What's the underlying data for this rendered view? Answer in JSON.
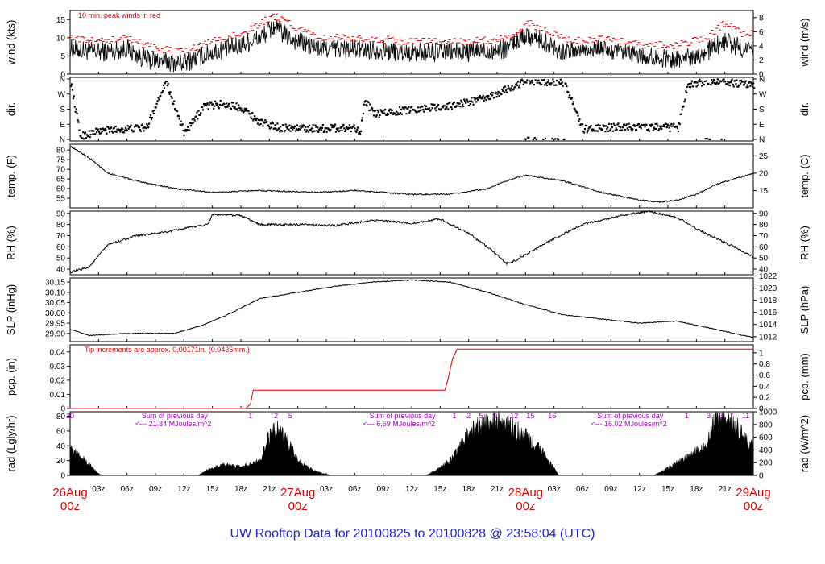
{
  "chart_data": {
    "title": "UW Rooftop Data for 20100825  to  20100828 @ 23:58:04  (UTC)",
    "type": "line",
    "x": {
      "day_labels": [
        {
          "t": 0,
          "day": "26Aug",
          "hour": "00z"
        },
        {
          "t": 24,
          "day": "27Aug",
          "hour": "00z"
        },
        {
          "t": 48,
          "day": "28Aug",
          "hour": "00z"
        },
        {
          "t": 72,
          "day": "29Aug",
          "hour": "00z"
        }
      ],
      "hour_ticks": [
        "03z",
        "06z",
        "09z",
        "12z",
        "15z",
        "18z",
        "21z"
      ],
      "range_hours": [
        0,
        72
      ]
    },
    "colors": {
      "main": "#000000",
      "accent": "#dd0000",
      "title": "#2222cc",
      "annotation": "#aa00cc"
    },
    "panels": [
      {
        "id": "wind",
        "ylabel_left": "wind (kts)",
        "ylabel_right": "wind (m/s)",
        "ylim": [
          0,
          17.5
        ],
        "yticks_left": [
          "0",
          "5",
          "10",
          "15"
        ],
        "yticks_right": [
          "0",
          "2",
          "4",
          "6",
          "8"
        ],
        "note": "10 min. peak winds in red",
        "series": [
          {
            "t": 0,
            "v": 7
          },
          {
            "t": 3,
            "v": 6
          },
          {
            "t": 6,
            "v": 7
          },
          {
            "t": 8,
            "v": 4
          },
          {
            "t": 12,
            "v": 3
          },
          {
            "t": 15,
            "v": 6
          },
          {
            "t": 18,
            "v": 8
          },
          {
            "t": 20,
            "v": 10
          },
          {
            "t": 21.5,
            "v": 13
          },
          {
            "t": 23,
            "v": 10
          },
          {
            "t": 26,
            "v": 7
          },
          {
            "t": 30,
            "v": 7
          },
          {
            "t": 36,
            "v": 6
          },
          {
            "t": 42,
            "v": 6
          },
          {
            "t": 46,
            "v": 7
          },
          {
            "t": 48,
            "v": 11
          },
          {
            "t": 50,
            "v": 9
          },
          {
            "t": 52,
            "v": 6
          },
          {
            "t": 55,
            "v": 7
          },
          {
            "t": 60,
            "v": 5
          },
          {
            "t": 64,
            "v": 4
          },
          {
            "t": 67,
            "v": 6
          },
          {
            "t": 69,
            "v": 9
          },
          {
            "t": 71,
            "v": 7
          },
          {
            "t": 72,
            "v": 6
          }
        ],
        "peaks": [
          {
            "t": 0,
            "v": 10
          },
          {
            "t": 3,
            "v": 9
          },
          {
            "t": 6,
            "v": 10
          },
          {
            "t": 9,
            "v": 7
          },
          {
            "t": 12,
            "v": 6
          },
          {
            "t": 15,
            "v": 9
          },
          {
            "t": 18,
            "v": 11
          },
          {
            "t": 21.5,
            "v": 16
          },
          {
            "t": 23,
            "v": 14
          },
          {
            "t": 26,
            "v": 10
          },
          {
            "t": 30,
            "v": 10
          },
          {
            "t": 36,
            "v": 9
          },
          {
            "t": 42,
            "v": 9
          },
          {
            "t": 47,
            "v": 10
          },
          {
            "t": 48.3,
            "v": 14
          },
          {
            "t": 50,
            "v": 12
          },
          {
            "t": 53,
            "v": 9
          },
          {
            "t": 56,
            "v": 10
          },
          {
            "t": 60,
            "v": 8
          },
          {
            "t": 64,
            "v": 8
          },
          {
            "t": 67,
            "v": 10
          },
          {
            "t": 69,
            "v": 14
          },
          {
            "t": 71,
            "v": 11
          }
        ]
      },
      {
        "id": "dir",
        "ylabel_left": "dir.",
        "ylabel_right": "dir.",
        "ylim": [
          0,
          360
        ],
        "yticks_left": [
          "N",
          "E",
          "S",
          "W",
          "N"
        ],
        "yticks_right": [
          "N",
          "E",
          "S",
          "W",
          "N"
        ],
        "series": [
          {
            "t": 0,
            "v": 340
          },
          {
            "t": 1,
            "v": 20
          },
          {
            "t": 3,
            "v": 50
          },
          {
            "t": 5,
            "v": 60
          },
          {
            "t": 8,
            "v": 70
          },
          {
            "t": 10,
            "v": 350
          },
          {
            "t": 12,
            "v": 30
          },
          {
            "t": 14,
            "v": 200
          },
          {
            "t": 16,
            "v": 210
          },
          {
            "t": 18,
            "v": 190
          },
          {
            "t": 20,
            "v": 100
          },
          {
            "t": 22,
            "v": 70
          },
          {
            "t": 26,
            "v": 65
          },
          {
            "t": 30,
            "v": 70
          },
          {
            "t": 30.5,
            "v": 50
          },
          {
            "t": 31,
            "v": 230
          },
          {
            "t": 32,
            "v": 150
          },
          {
            "t": 36,
            "v": 180
          },
          {
            "t": 40,
            "v": 200
          },
          {
            "t": 44,
            "v": 250
          },
          {
            "t": 46,
            "v": 300
          },
          {
            "t": 48,
            "v": 350
          },
          {
            "t": 52,
            "v": 340
          },
          {
            "t": 54,
            "v": 60
          },
          {
            "t": 58,
            "v": 75
          },
          {
            "t": 64,
            "v": 70
          },
          {
            "t": 65,
            "v": 330
          },
          {
            "t": 68,
            "v": 350
          },
          {
            "t": 72,
            "v": 320
          }
        ]
      },
      {
        "id": "temp",
        "ylabel_left": "temp. (F)",
        "ylabel_right": "temp. (C)",
        "ylim": [
          50,
          83
        ],
        "yticks_left": [
          "55",
          "60",
          "65",
          "70",
          "75",
          "80"
        ],
        "yticks_right": [
          "15",
          "20",
          "25"
        ],
        "series": [
          {
            "t": 0,
            "v": 82
          },
          {
            "t": 2,
            "v": 76
          },
          {
            "t": 4,
            "v": 68
          },
          {
            "t": 7,
            "v": 64
          },
          {
            "t": 11,
            "v": 60
          },
          {
            "t": 15,
            "v": 58
          },
          {
            "t": 20,
            "v": 59
          },
          {
            "t": 26,
            "v": 58
          },
          {
            "t": 30,
            "v": 59
          },
          {
            "t": 36,
            "v": 57
          },
          {
            "t": 40,
            "v": 57
          },
          {
            "t": 44,
            "v": 60
          },
          {
            "t": 46,
            "v": 64
          },
          {
            "t": 48,
            "v": 67
          },
          {
            "t": 52,
            "v": 64
          },
          {
            "t": 56,
            "v": 58
          },
          {
            "t": 60,
            "v": 54
          },
          {
            "t": 62,
            "v": 53
          },
          {
            "t": 64,
            "v": 54
          },
          {
            "t": 66,
            "v": 57
          },
          {
            "t": 68,
            "v": 62
          },
          {
            "t": 72,
            "v": 68
          }
        ]
      },
      {
        "id": "rh",
        "ylabel_left": "RH (%)",
        "ylabel_right": "RH (%)",
        "ylim": [
          35,
          92
        ],
        "yticks_left": [
          "40",
          "50",
          "60",
          "70",
          "80",
          "90"
        ],
        "yticks_right": [
          "40",
          "50",
          "60",
          "70",
          "80",
          "90"
        ],
        "series": [
          {
            "t": 0,
            "v": 37
          },
          {
            "t": 2,
            "v": 42
          },
          {
            "t": 4,
            "v": 62
          },
          {
            "t": 7,
            "v": 70
          },
          {
            "t": 10,
            "v": 73
          },
          {
            "t": 13,
            "v": 78
          },
          {
            "t": 14.5,
            "v": 80
          },
          {
            "t": 15,
            "v": 89
          },
          {
            "t": 18,
            "v": 88
          },
          {
            "t": 20,
            "v": 80
          },
          {
            "t": 24,
            "v": 80
          },
          {
            "t": 28,
            "v": 79
          },
          {
            "t": 32,
            "v": 84
          },
          {
            "t": 36,
            "v": 81
          },
          {
            "t": 39,
            "v": 85
          },
          {
            "t": 42,
            "v": 72
          },
          {
            "t": 44,
            "v": 60
          },
          {
            "t": 46,
            "v": 45
          },
          {
            "t": 47,
            "v": 48
          },
          {
            "t": 50,
            "v": 63
          },
          {
            "t": 54,
            "v": 80
          },
          {
            "t": 58,
            "v": 88
          },
          {
            "t": 61,
            "v": 92
          },
          {
            "t": 64,
            "v": 86
          },
          {
            "t": 67,
            "v": 72
          },
          {
            "t": 70,
            "v": 60
          },
          {
            "t": 72,
            "v": 51
          }
        ]
      },
      {
        "id": "slp",
        "ylabel_left": "SLP (inHg)",
        "ylabel_right": "SLP (hPa)",
        "ylim": [
          29.86,
          30.17
        ],
        "yticks_left": [
          "29.90",
          "29.95",
          "30.00",
          "30.05",
          "30.10",
          "30.15"
        ],
        "yticks_right": [
          "1012",
          "1014",
          "1016",
          "1018",
          "1020",
          "1022"
        ],
        "series": [
          {
            "t": 0,
            "v": 29.92
          },
          {
            "t": 2,
            "v": 29.89
          },
          {
            "t": 6,
            "v": 29.9
          },
          {
            "t": 11,
            "v": 29.9
          },
          {
            "t": 14,
            "v": 29.94
          },
          {
            "t": 17,
            "v": 30.0
          },
          {
            "t": 20,
            "v": 30.07
          },
          {
            "t": 24,
            "v": 30.1
          },
          {
            "t": 28,
            "v": 30.13
          },
          {
            "t": 32,
            "v": 30.15
          },
          {
            "t": 36,
            "v": 30.16
          },
          {
            "t": 40,
            "v": 30.15
          },
          {
            "t": 44,
            "v": 30.1
          },
          {
            "t": 48,
            "v": 30.04
          },
          {
            "t": 52,
            "v": 29.99
          },
          {
            "t": 56,
            "v": 29.97
          },
          {
            "t": 60,
            "v": 29.95
          },
          {
            "t": 64,
            "v": 29.96
          },
          {
            "t": 68,
            "v": 29.92
          },
          {
            "t": 72,
            "v": 29.88
          }
        ]
      },
      {
        "id": "pcp",
        "ylabel_left": "pcp. (in)",
        "ylabel_right": "pcp. (mm)",
        "ylim": [
          0,
          0.045
        ],
        "yticks_left": [
          "0",
          "0.01",
          "0.02",
          "0.03",
          "0.04"
        ],
        "yticks_right": [
          "0",
          "0.2",
          "0.4",
          "0.6",
          "0.8",
          "1"
        ],
        "note": "Tip increments are approx. 0.00171in. (0.0435mm.)",
        "series": [
          {
            "t": 0,
            "v": 0
          },
          {
            "t": 18.5,
            "v": 0
          },
          {
            "t": 19,
            "v": 0.003
          },
          {
            "t": 19.3,
            "v": 0.013
          },
          {
            "t": 39.5,
            "v": 0.013
          },
          {
            "t": 39.8,
            "v": 0.02
          },
          {
            "t": 40.3,
            "v": 0.035
          },
          {
            "t": 40.8,
            "v": 0.042
          },
          {
            "t": 72,
            "v": 0.042
          }
        ]
      },
      {
        "id": "rad",
        "ylabel_left": "rad (Lgly/hr)",
        "ylabel_right": "rad (W/m^2)",
        "ylim": [
          0,
          86
        ],
        "yticks_left": [
          "0",
          "20",
          "40",
          "60",
          "80"
        ],
        "yticks_right": [
          "0",
          "200",
          "400",
          "600",
          "800",
          "1000"
        ],
        "hour_marks": [
          {
            "t": 0,
            "label": "20"
          },
          {
            "t": 19,
            "label": "1"
          },
          {
            "t": 21.7,
            "label": "2"
          },
          {
            "t": 23.2,
            "label": "5"
          },
          {
            "t": 40.5,
            "label": "1"
          },
          {
            "t": 42,
            "label": "2"
          },
          {
            "t": 43.3,
            "label": "5"
          },
          {
            "t": 44.8,
            "label": "9"
          },
          {
            "t": 46.8,
            "label": "12"
          },
          {
            "t": 48.5,
            "label": "15"
          },
          {
            "t": 50.8,
            "label": "16"
          },
          {
            "t": 65,
            "label": "1"
          },
          {
            "t": 67.3,
            "label": "3"
          },
          {
            "t": 68.6,
            "label": "5"
          },
          {
            "t": 69.7,
            "label": "7"
          },
          {
            "t": 71.2,
            "label": "11"
          }
        ],
        "daily_sums": [
          {
            "t": 5,
            "line1": "Sum of previous day",
            "line2": "<--- 21.84 MJoules/m^2"
          },
          {
            "t": 29,
            "line1": "Sum of previous day",
            "line2": "<--- 6.69 MJoules/m^2"
          },
          {
            "t": 53,
            "line1": "Sum of previous day",
            "line2": "<--- 16.02 MJoules/m^2"
          }
        ],
        "series": [
          {
            "t": 0,
            "v": 38
          },
          {
            "t": 1,
            "v": 28
          },
          {
            "t": 2,
            "v": 15
          },
          {
            "t": 3,
            "v": 2
          },
          {
            "t": 3.5,
            "v": 0
          },
          {
            "t": 13.5,
            "v": 0
          },
          {
            "t": 14.5,
            "v": 8
          },
          {
            "t": 16,
            "v": 15
          },
          {
            "t": 18,
            "v": 12
          },
          {
            "t": 20,
            "v": 20
          },
          {
            "t": 21,
            "v": 55
          },
          {
            "t": 22,
            "v": 65
          },
          {
            "t": 23,
            "v": 45
          },
          {
            "t": 24,
            "v": 20
          },
          {
            "t": 26,
            "v": 5
          },
          {
            "t": 27.5,
            "v": 0
          },
          {
            "t": 37.5,
            "v": 0
          },
          {
            "t": 39,
            "v": 10
          },
          {
            "t": 40,
            "v": 20
          },
          {
            "t": 41,
            "v": 38
          },
          {
            "t": 42,
            "v": 60
          },
          {
            "t": 44,
            "v": 73
          },
          {
            "t": 46,
            "v": 72
          },
          {
            "t": 48,
            "v": 55
          },
          {
            "t": 50,
            "v": 30
          },
          {
            "t": 51.5,
            "v": 0
          },
          {
            "t": 61.5,
            "v": 0
          },
          {
            "t": 63,
            "v": 10
          },
          {
            "t": 65,
            "v": 25
          },
          {
            "t": 67,
            "v": 40
          },
          {
            "t": 68,
            "v": 75
          },
          {
            "t": 69,
            "v": 80
          },
          {
            "t": 70,
            "v": 70
          },
          {
            "t": 72,
            "v": 40
          }
        ]
      }
    ]
  }
}
